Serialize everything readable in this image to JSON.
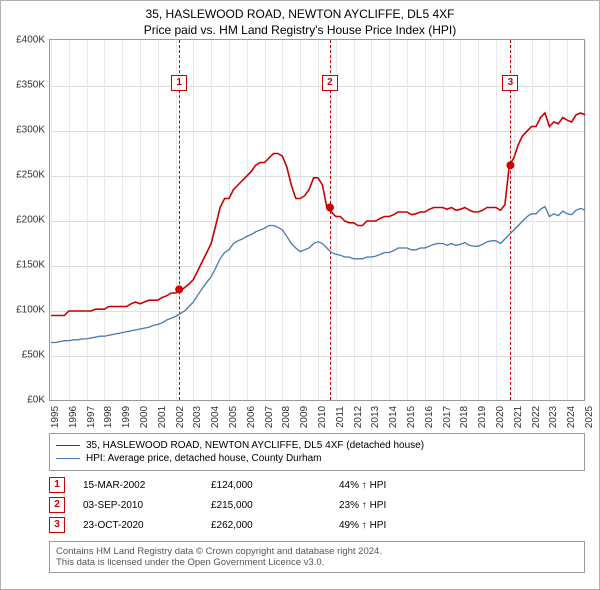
{
  "title": "35, HASLEWOOD ROAD, NEWTON AYCLIFFE, DL5 4XF",
  "subtitle": "Price paid vs. HM Land Registry's House Price Index (HPI)",
  "chart": {
    "type": "line",
    "bg": "#ffffff",
    "border": "#999999",
    "grid_color": "#dddddd",
    "xgrid_color": "#e8e8e8",
    "ylim": [
      0,
      400000
    ],
    "ytick_step": 50000,
    "yticks": [
      "£0K",
      "£50K",
      "£100K",
      "£150K",
      "£200K",
      "£250K",
      "£300K",
      "£350K",
      "£400K"
    ],
    "xyears": [
      1995,
      1996,
      1997,
      1998,
      1999,
      2000,
      2001,
      2002,
      2003,
      2004,
      2005,
      2006,
      2007,
      2008,
      2009,
      2010,
      2011,
      2012,
      2013,
      2014,
      2015,
      2016,
      2017,
      2018,
      2019,
      2020,
      2021,
      2022,
      2023,
      2024,
      2025
    ],
    "series": [
      {
        "name": "35, HASLEWOOD ROAD, NEWTON AYCLIFFE, DL5 4XF (detached house)",
        "color": "#cc0000",
        "width": 1.6,
        "quarterly_values": [
          95000,
          95000,
          95000,
          95000,
          100000,
          100000,
          100000,
          100000,
          100000,
          100000,
          102000,
          102000,
          102000,
          105000,
          105000,
          105000,
          105000,
          105000,
          108000,
          110000,
          108000,
          110000,
          112000,
          112000,
          112000,
          115000,
          117000,
          120000,
          120000,
          122000,
          126000,
          130000,
          135000,
          145000,
          155000,
          165000,
          175000,
          195000,
          215000,
          225000,
          225000,
          235000,
          240000,
          245000,
          250000,
          255000,
          262000,
          265000,
          265000,
          270000,
          275000,
          275000,
          272000,
          260000,
          240000,
          225000,
          225000,
          228000,
          235000,
          248000,
          248000,
          240000,
          215000,
          210000,
          205000,
          205000,
          200000,
          198000,
          198000,
          195000,
          195000,
          200000,
          200000,
          200000,
          203000,
          205000,
          205000,
          207000,
          210000,
          210000,
          210000,
          207000,
          208000,
          210000,
          210000,
          213000,
          215000,
          215000,
          215000,
          213000,
          215000,
          212000,
          213000,
          215000,
          212000,
          210000,
          210000,
          212000,
          215000,
          215000,
          215000,
          212000,
          218000,
          262000,
          270000,
          285000,
          295000,
          300000,
          305000,
          305000,
          315000,
          320000,
          305000,
          310000,
          308000,
          315000,
          312000,
          310000,
          318000,
          320000,
          318000
        ]
      },
      {
        "name": "HPI: Average price, detached house, County Durham",
        "color": "#4878b0",
        "width": 1.3,
        "quarterly_values": [
          65000,
          65000,
          66000,
          67000,
          67000,
          68000,
          68000,
          69000,
          69000,
          70000,
          71000,
          72000,
          72000,
          73000,
          74000,
          75000,
          76000,
          77000,
          78000,
          79000,
          80000,
          81000,
          82000,
          84000,
          85000,
          87000,
          90000,
          92000,
          94000,
          97000,
          100000,
          105000,
          110000,
          118000,
          125000,
          132000,
          138000,
          148000,
          158000,
          165000,
          168000,
          175000,
          178000,
          180000,
          183000,
          185000,
          188000,
          190000,
          192000,
          195000,
          195000,
          193000,
          190000,
          183000,
          175000,
          170000,
          166000,
          168000,
          170000,
          175000,
          177000,
          175000,
          170000,
          165000,
          163000,
          162000,
          160000,
          160000,
          158000,
          158000,
          158000,
          160000,
          160000,
          161000,
          163000,
          165000,
          165000,
          167000,
          170000,
          170000,
          170000,
          168000,
          168000,
          170000,
          170000,
          172000,
          174000,
          175000,
          175000,
          173000,
          175000,
          173000,
          174000,
          176000,
          173000,
          172000,
          172000,
          174000,
          177000,
          178000,
          178000,
          175000,
          180000,
          185000,
          190000,
          195000,
          200000,
          205000,
          208000,
          208000,
          213000,
          216000,
          205000,
          208000,
          206000,
          211000,
          208000,
          207000,
          212000,
          214000,
          212000
        ]
      }
    ],
    "event_lines": [
      {
        "year": 2002.2,
        "label": "1",
        "marker_top_offset": 35
      },
      {
        "year": 2010.67,
        "label": "2",
        "marker_top_offset": 35
      },
      {
        "year": 2020.81,
        "label": "3",
        "marker_top_offset": 35
      }
    ],
    "event_dots": [
      {
        "year": 2002.2,
        "value": 124000,
        "color": "#cc0000"
      },
      {
        "year": 2010.67,
        "value": 215000,
        "color": "#cc0000"
      },
      {
        "year": 2020.81,
        "value": 262000,
        "color": "#cc0000"
      }
    ]
  },
  "legend": [
    {
      "color": "#cc0000",
      "text": "35, HASLEWOOD ROAD, NEWTON AYCLIFFE, DL5 4XF (detached house)"
    },
    {
      "color": "#4878b0",
      "text": "HPI: Average price, detached house, County Durham"
    }
  ],
  "events_table": [
    {
      "n": "1",
      "date": "15-MAR-2002",
      "price": "£124,000",
      "pct": "44% ↑ HPI"
    },
    {
      "n": "2",
      "date": "03-SEP-2010",
      "price": "£215,000",
      "pct": "23% ↑ HPI"
    },
    {
      "n": "3",
      "date": "23-OCT-2020",
      "price": "£262,000",
      "pct": "49% ↑ HPI"
    }
  ],
  "footer": {
    "line1": "Contains HM Land Registry data © Crown copyright and database right 2024.",
    "line2": "This data is licensed under the Open Government Licence v3.0."
  }
}
